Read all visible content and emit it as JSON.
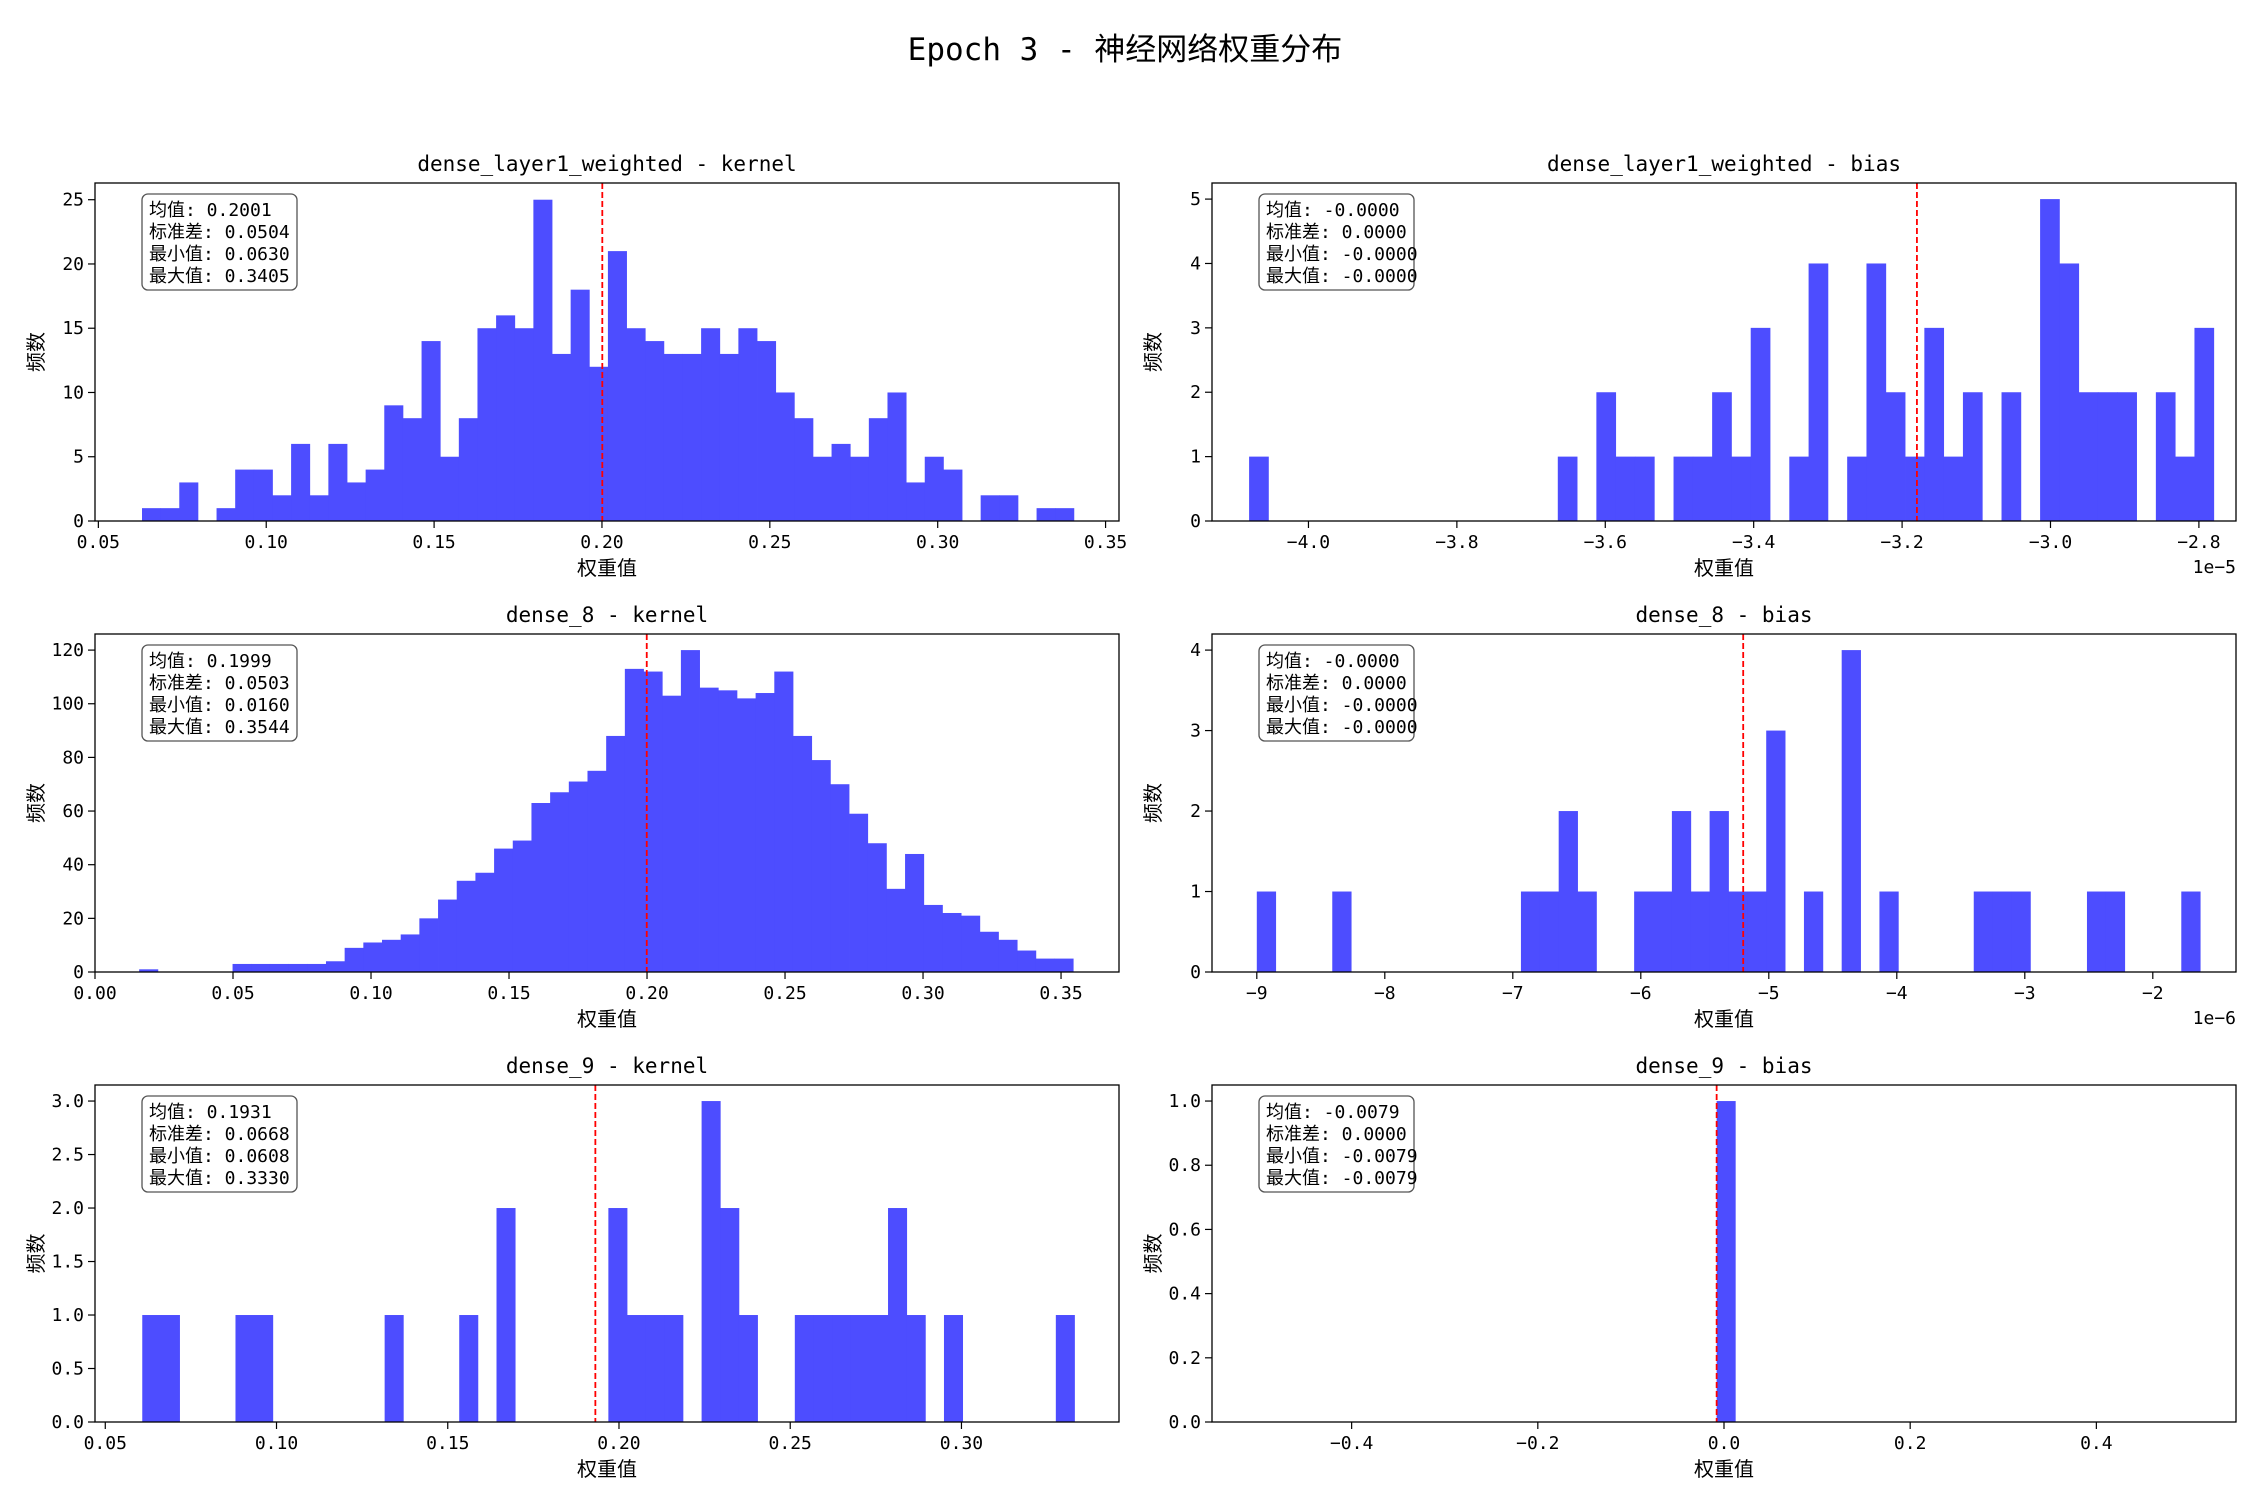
{
  "figure": {
    "title": "Epoch 3 - 神经网络权重分布",
    "xlabel": "权重值",
    "ylabel": "频数",
    "bar_color": "#4d4dff",
    "mean_line_color": "#ff0000"
  },
  "chart_data": [
    {
      "type": "bar",
      "title": "dense_layer1_weighted - kernel",
      "xlabel": "权重值",
      "ylabel": "频数",
      "bins": {
        "start": 0.063,
        "width": 0.005551,
        "count": 50
      },
      "values": [
        1,
        1,
        3,
        0,
        1,
        4,
        4,
        2,
        6,
        2,
        6,
        3,
        4,
        9,
        8,
        14,
        5,
        8,
        15,
        16,
        15,
        25,
        13,
        18,
        12,
        21,
        15,
        14,
        13,
        13,
        15,
        13,
        15,
        14,
        10,
        8,
        5,
        6,
        5,
        8,
        10,
        3,
        5,
        4,
        0,
        2,
        2,
        0,
        1,
        1
      ],
      "xlim": [
        0.049,
        0.354
      ],
      "ylim": [
        0,
        26.3
      ],
      "xticks": [
        0.05,
        0.1,
        0.15,
        0.2,
        0.25,
        0.3,
        0.35
      ],
      "xtick_labels": [
        "0.05",
        "0.10",
        "0.15",
        "0.20",
        "0.25",
        "0.30",
        "0.35"
      ],
      "yticks": [
        0,
        5,
        10,
        15,
        20,
        25
      ],
      "ytick_labels": [
        "0",
        "5",
        "10",
        "15",
        "20",
        "25"
      ],
      "mean": 0.2001,
      "offset_label": "",
      "stats": [
        "均值: 0.2001",
        "标准差: 0.0504",
        "最小值: 0.0630",
        "最大值: 0.3405"
      ]
    },
    {
      "type": "bar",
      "title": "dense_layer1_weighted - bias",
      "xlabel": "权重值",
      "ylabel": "频数",
      "bins": {
        "start": -4.08,
        "width": 0.026,
        "count": 50
      },
      "values": [
        1,
        0,
        0,
        0,
        0,
        0,
        0,
        0,
        0,
        0,
        0,
        0,
        0,
        0,
        0,
        0,
        1,
        0,
        2,
        1,
        1,
        0,
        1,
        1,
        2,
        1,
        3,
        0,
        1,
        4,
        0,
        1,
        4,
        2,
        1,
        3,
        1,
        2,
        0,
        2,
        0,
        5,
        4,
        2,
        2,
        2,
        0,
        2,
        1,
        3
      ],
      "xlim": [
        -4.13,
        -2.75
      ],
      "ylim": [
        0,
        5.25
      ],
      "xticks": [
        -4.0,
        -3.8,
        -3.6,
        -3.4,
        -3.2,
        -3.0,
        -2.8
      ],
      "xtick_labels": [
        "−4.0",
        "−3.8",
        "−3.6",
        "−3.4",
        "−3.2",
        "−3.0",
        "−2.8"
      ],
      "yticks": [
        0,
        1,
        2,
        3,
        4,
        5
      ],
      "ytick_labels": [
        "0",
        "1",
        "2",
        "3",
        "4",
        "5"
      ],
      "mean": -3.18,
      "offset_label": "1e−5",
      "stats": [
        "均值: -0.0000",
        "标准差: 0.0000",
        "最小值: -0.0000",
        "最大值: -0.0000"
      ]
    },
    {
      "type": "bar",
      "title": "dense_8 - kernel",
      "xlabel": "权重值",
      "ylabel": "频数",
      "bins": {
        "start": 0.016,
        "width": 0.006768,
        "count": 50
      },
      "values": [
        1,
        0,
        0,
        0,
        0,
        3,
        3,
        3,
        3,
        3,
        4,
        9,
        11,
        12,
        14,
        20,
        27,
        34,
        37,
        46,
        49,
        63,
        67,
        71,
        75,
        88,
        113,
        112,
        103,
        120,
        106,
        105,
        102,
        104,
        112,
        88,
        79,
        70,
        59,
        48,
        31,
        44,
        25,
        22,
        21,
        15,
        12,
        8,
        5,
        5
      ],
      "xlim": [
        0.0,
        0.371
      ],
      "ylim": [
        0,
        126
      ],
      "xticks": [
        0.0,
        0.05,
        0.1,
        0.15,
        0.2,
        0.25,
        0.3,
        0.35
      ],
      "xtick_labels": [
        "0.00",
        "0.05",
        "0.10",
        "0.15",
        "0.20",
        "0.25",
        "0.30",
        "0.35"
      ],
      "yticks": [
        0,
        20,
        40,
        60,
        80,
        100,
        120
      ],
      "ytick_labels": [
        "0",
        "20",
        "40",
        "60",
        "80",
        "100",
        "120"
      ],
      "mean": 0.1999,
      "offset_label": "",
      "stats": [
        "均值: 0.1999",
        "标准差: 0.0503",
        "最小值: 0.0160",
        "最大值: 0.3544"
      ]
    },
    {
      "type": "bar",
      "title": "dense_8 - bias",
      "xlabel": "权重值",
      "ylabel": "频数",
      "bins": {
        "start": -9.0,
        "width": 0.1474,
        "count": 50
      },
      "values": [
        1,
        0,
        0,
        0,
        1,
        0,
        0,
        0,
        0,
        0,
        0,
        0,
        0,
        0,
        1,
        1,
        2,
        1,
        0,
        0,
        1,
        1,
        2,
        1,
        2,
        1,
        1,
        3,
        0,
        1,
        0,
        4,
        0,
        1,
        0,
        0,
        0,
        0,
        1,
        1,
        1,
        0,
        0,
        0,
        1,
        1,
        0,
        0,
        0,
        1
      ],
      "xlim": [
        -9.35,
        -1.35
      ],
      "ylim": [
        0,
        4.2
      ],
      "xticks": [
        -9,
        -8,
        -7,
        -6,
        -5,
        -4,
        -3,
        -2
      ],
      "xtick_labels": [
        "−9",
        "−8",
        "−7",
        "−6",
        "−5",
        "−4",
        "−3",
        "−2"
      ],
      "yticks": [
        0,
        1,
        2,
        3,
        4
      ],
      "ytick_labels": [
        "0",
        "1",
        "2",
        "3",
        "4"
      ],
      "mean": -5.2,
      "offset_label": "1e−6",
      "stats": [
        "均值: -0.0000",
        "标准差: 0.0000",
        "最小值: -0.0000",
        "最大值: -0.0000"
      ]
    },
    {
      "type": "bar",
      "title": "dense_9 - kernel",
      "xlabel": "权重值",
      "ylabel": "频数",
      "bins": {
        "start": 0.0608,
        "width": 0.005444,
        "count": 50
      },
      "values": [
        1,
        1,
        0,
        0,
        0,
        1,
        1,
        0,
        0,
        0,
        0,
        0,
        0,
        1,
        0,
        0,
        0,
        1,
        0,
        2,
        0,
        0,
        0,
        0,
        0,
        2,
        1,
        1,
        1,
        0,
        3,
        2,
        1,
        0,
        0,
        1,
        1,
        1,
        1,
        1,
        2,
        1,
        0,
        1,
        0,
        0,
        0,
        0,
        0,
        1
      ],
      "xlim": [
        0.047,
        0.346
      ],
      "ylim": [
        0,
        3.15
      ],
      "xticks": [
        0.05,
        0.1,
        0.15,
        0.2,
        0.25,
        0.3
      ],
      "xtick_labels": [
        "0.05",
        "0.10",
        "0.15",
        "0.20",
        "0.25",
        "0.30"
      ],
      "yticks": [
        0,
        0.5,
        1.0,
        1.5,
        2.0,
        2.5,
        3.0
      ],
      "ytick_labels": [
        "0.0",
        "0.5",
        "1.0",
        "1.5",
        "2.0",
        "2.5",
        "3.0"
      ],
      "mean": 0.1931,
      "offset_label": "",
      "stats": [
        "均值: 0.1931",
        "标准差: 0.0668",
        "最小值: 0.0608",
        "最大值: 0.3330"
      ]
    },
    {
      "type": "bar",
      "title": "dense_9 - bias",
      "xlabel": "权重值",
      "ylabel": "频数",
      "bins": {
        "start": -0.0079,
        "width": 0.02,
        "count": 1
      },
      "values": [
        1
      ],
      "xlim": [
        -0.55,
        0.55
      ],
      "ylim": [
        0,
        1.05
      ],
      "xticks": [
        -0.4,
        -0.2,
        0.0,
        0.2,
        0.4
      ],
      "xtick_labels": [
        "−0.4",
        "−0.2",
        "0.0",
        "0.2",
        "0.4"
      ],
      "yticks": [
        0,
        0.2,
        0.4,
        0.6,
        0.8,
        1.0
      ],
      "ytick_labels": [
        "0.0",
        "0.2",
        "0.4",
        "0.6",
        "0.8",
        "1.0"
      ],
      "mean": -0.0079,
      "offset_label": "",
      "stats": [
        "均值: -0.0079",
        "标准差: 0.0000",
        "最小值: -0.0079",
        "最大值: -0.0079"
      ]
    }
  ]
}
